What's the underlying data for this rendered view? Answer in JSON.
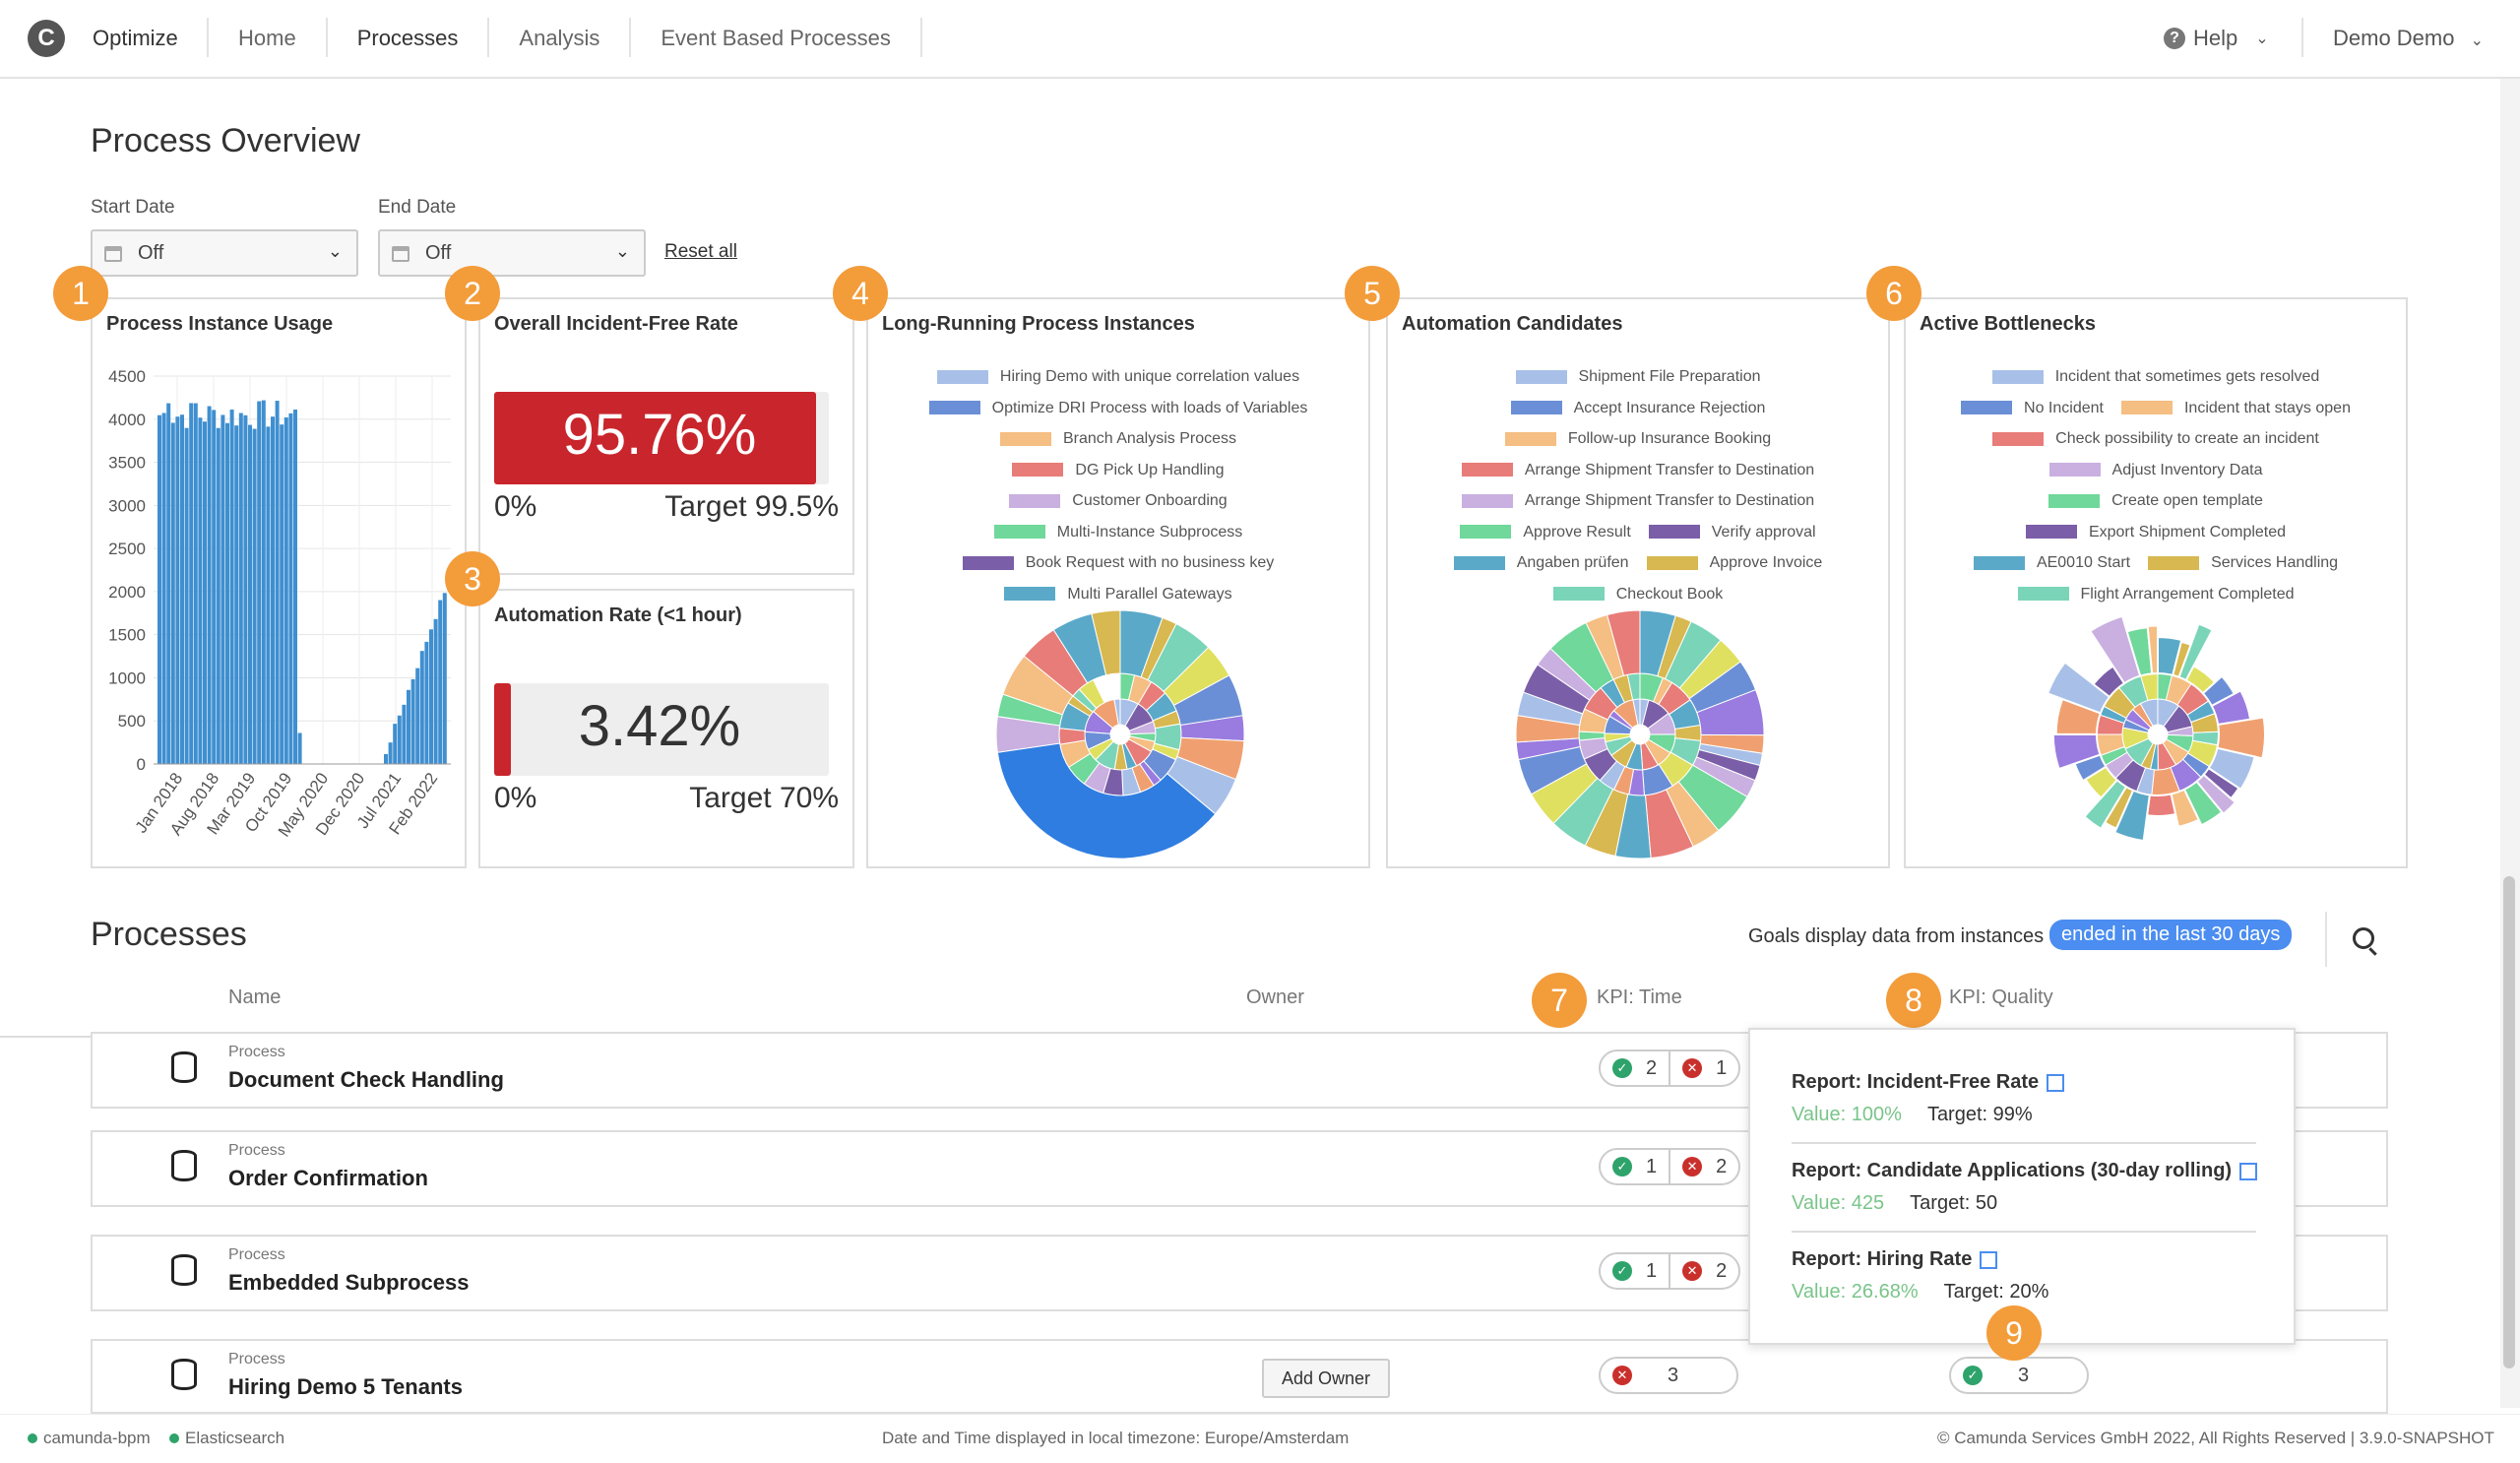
{
  "topbar": {
    "logo": "C",
    "app_name": "Optimize",
    "nav": [
      "Home",
      "Processes",
      "Analysis",
      "Event Based Processes"
    ],
    "active_nav": "Processes",
    "help_label": "Help",
    "user_label": "Demo Demo"
  },
  "overview": {
    "title": "Process Overview",
    "start_label": "Start Date",
    "start_value": "Off",
    "end_label": "End Date",
    "end_value": "Off",
    "reset_label": "Reset all"
  },
  "badges": [
    "1",
    "2",
    "3",
    "4",
    "5",
    "6",
    "7",
    "8",
    "9"
  ],
  "cards": {
    "usage": {
      "title": "Process Instance Usage",
      "y_ticks": [
        "4500",
        "4000",
        "3500",
        "3000",
        "2500",
        "2000",
        "1500",
        "1000",
        "500",
        "0"
      ],
      "x_ticks": [
        "Jan 2018",
        "Aug 2018",
        "Mar 2019",
        "Oct 2019",
        "May 2020",
        "Dec 2020",
        "Jul 2021",
        "Feb 2022"
      ]
    },
    "incident": {
      "title": "Overall Incident-Free Rate",
      "value": "95.76%",
      "min": "0%",
      "target": "Target 99.5%",
      "fill": 0.9624
    },
    "automation": {
      "title": "Automation Rate (<1 hour)",
      "value": "3.42%",
      "min": "0%",
      "target": "Target 70%",
      "fill": 0.0489
    },
    "long_running": {
      "title": "Long-Running Process Instances",
      "legend": [
        {
          "label": "Hiring Demo with unique correlation values",
          "color": "#a8c0e8"
        },
        {
          "label": "Optimize DRI Process with loads of Variables",
          "color": "#6b8fd6"
        },
        {
          "label": "Branch Analysis Process",
          "color": "#f5be82"
        },
        {
          "label": "DG Pick Up Handling",
          "color": "#e87c78"
        },
        {
          "label": "Customer Onboarding",
          "color": "#c9b0e0"
        },
        {
          "label": "Multi-Instance Subprocess",
          "color": "#6fd89a"
        },
        {
          "label": "Book Request with no business key",
          "color": "#7b5ea8"
        },
        {
          "label": "Multi Parallel Gateways",
          "color": "#5aa9c9"
        }
      ]
    },
    "automation_candidates": {
      "title": "Automation Candidates",
      "legend": [
        {
          "label": "Shipment File Preparation",
          "color": "#a8c0e8"
        },
        {
          "label": "Accept Insurance Rejection",
          "color": "#6b8fd6"
        },
        {
          "label": "Follow-up Insurance Booking",
          "color": "#f5be82"
        },
        {
          "label": "Arrange Shipment Transfer to Destination",
          "color": "#e87c78"
        },
        {
          "label": "Arrange Shipment Transfer to Destination",
          "color": "#c9b0e0"
        },
        {
          "label": "Approve Result",
          "color": "#6fd89a"
        },
        {
          "label": "Verify approval",
          "color": "#7b5ea8"
        },
        {
          "label": "Angaben prüfen",
          "color": "#5aa9c9"
        },
        {
          "label": "Approve Invoice",
          "color": "#d8b850"
        },
        {
          "label": "Checkout Book",
          "color": "#7ad4b8"
        }
      ]
    },
    "bottlenecks": {
      "title": "Active Bottlenecks",
      "legend": [
        {
          "label": "Incident that sometimes gets resolved",
          "color": "#a8c0e8"
        },
        {
          "label": "No Incident",
          "color": "#6b8fd6"
        },
        {
          "label": "Incident that stays open",
          "color": "#f5be82"
        },
        {
          "label": "Check possibility to create an incident",
          "color": "#e87c78"
        },
        {
          "label": "Adjust Inventory Data",
          "color": "#c9b0e0"
        },
        {
          "label": "Create open template",
          "color": "#6fd89a"
        },
        {
          "label": "Export Shipment Completed",
          "color": "#7b5ea8"
        },
        {
          "label": "AE0010 Start",
          "color": "#5aa9c9"
        },
        {
          "label": "Services Handling",
          "color": "#d8b850"
        },
        {
          "label": "Flight Arrangement Completed",
          "color": "#7ad4b8"
        }
      ]
    }
  },
  "processes": {
    "title": "Processes",
    "goals_text": "Goals display data from instances",
    "goals_pill": "ended in the last 30 days",
    "columns": {
      "name": "Name",
      "owner": "Owner",
      "kpi_time": "KPI: Time",
      "kpi_quality": "KPI: Quality"
    },
    "rows": [
      {
        "type": "Process",
        "name": "Document Check Handling",
        "ok": "2",
        "bad": "1"
      },
      {
        "type": "Process",
        "name": "Order Confirmation",
        "ok": "1",
        "bad": "2"
      },
      {
        "type": "Process",
        "name": "Embedded Subprocess",
        "ok": "1",
        "bad": "2"
      },
      {
        "type": "Process",
        "name": "Hiring Demo 5 Tenants",
        "owner_button": "Add Owner",
        "time_bad": "3",
        "quality_ok": "3"
      }
    ]
  },
  "popover": {
    "items": [
      {
        "title": "Report: Incident-Free Rate",
        "value": "Value: 100%",
        "target": "Target: 99%"
      },
      {
        "title": "Report: Candidate Applications (30-day rolling)",
        "value": "Value: 425",
        "target": "Target: 50"
      },
      {
        "title": "Report: Hiring Rate",
        "value": "Value: 26.68%",
        "target": "Target: 20%"
      }
    ]
  },
  "footer": {
    "engine": "camunda-bpm",
    "db": "Elasticsearch",
    "timezone": "Date and Time displayed in local timezone: Europe/Amsterdam",
    "copyright": "© Camunda Services GmbH 2022, All Rights Reserved | 3.9.0-SNAPSHOT"
  }
}
